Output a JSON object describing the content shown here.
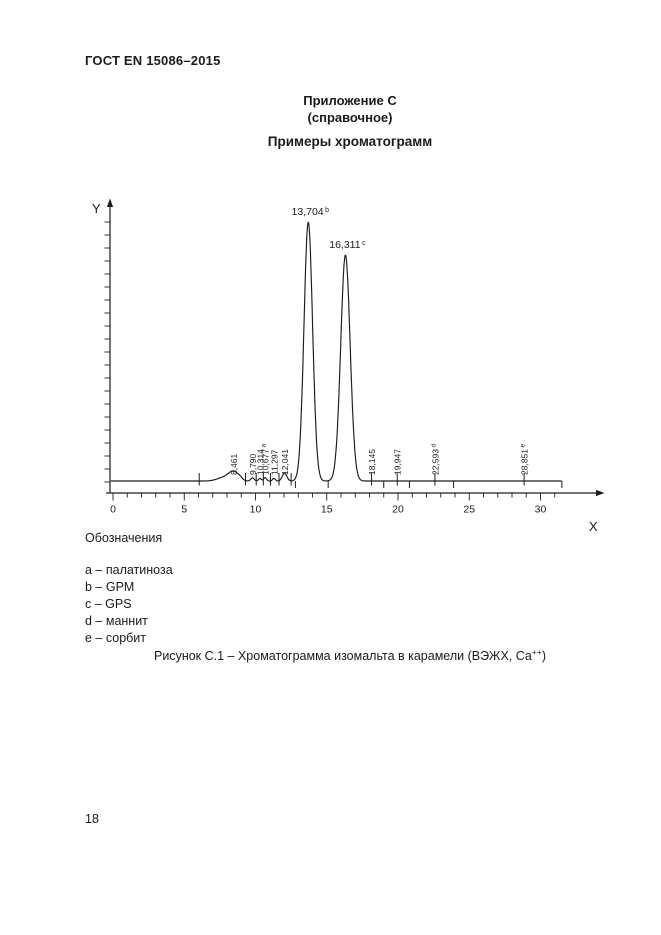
{
  "page": {
    "header": "ГОСТ EN 15086–2015",
    "appendix_title": "Приложение С",
    "appendix_subtitle": "(справочное)",
    "section_title": "Примеры хроматограмм",
    "page_number": "18"
  },
  "legend": {
    "title": "Обозначения",
    "items": [
      "a – палатиноза",
      "b – GPM",
      "c – GPS",
      "d – маннит",
      "e – сорбит"
    ]
  },
  "caption": {
    "prefix": "Рисунок С.1 – Хроматограмма изомальта в карамели (ВЭЖХ, Са",
    "sup": "++",
    "suffix": ")"
  },
  "chart_data": {
    "type": "line",
    "kind": "chromatogram",
    "title": "",
    "xlabel": "X",
    "ylabel": "Y",
    "xlim": [
      0,
      31.6
    ],
    "x_major_ticks": [
      0,
      5,
      10,
      15,
      20,
      25,
      30
    ],
    "x_minor_tick_step": 1,
    "y_axis": "unlabeled uniform tick marks",
    "ink_color": "#1c1c1c",
    "peaks": [
      {
        "rt": 8.461,
        "label": "8,461",
        "sup": "",
        "rel_height": 0.03,
        "sigma": 0.3,
        "label_style": "rotated"
      },
      {
        "rt": 9.79,
        "label": "9,790",
        "sup": "",
        "rel_height": 0.012,
        "sigma": 0.12,
        "label_style": "rotated"
      },
      {
        "rt": 10.314,
        "label": "10,314",
        "sup": "",
        "rel_height": 0.01,
        "sigma": 0.1,
        "label_style": "rotated"
      },
      {
        "rt": 10.677,
        "label": "10,677",
        "sup": "a",
        "rel_height": 0.013,
        "sigma": 0.1,
        "label_style": "rotated"
      },
      {
        "rt": 11.297,
        "label": "11,297",
        "sup": "",
        "rel_height": 0.01,
        "sigma": 0.1,
        "label_style": "rotated"
      },
      {
        "rt": 12.041,
        "label": "12,041",
        "sup": "",
        "rel_height": 0.03,
        "sigma": 0.16,
        "label_style": "rotated"
      },
      {
        "rt": 13.704,
        "label": "13,704",
        "sup": "b",
        "rel_height": 1.0,
        "sigma": 0.3,
        "label_style": "horizontal"
      },
      {
        "rt": 16.311,
        "label": "16,311",
        "sup": "c",
        "rel_height": 0.873,
        "sigma": 0.33,
        "label_style": "horizontal"
      },
      {
        "rt": 18.145,
        "label": "18,145",
        "sup": "",
        "rel_height": 0.0,
        "sigma": 0.1,
        "label_style": "rotated"
      },
      {
        "rt": 19.947,
        "label": "19,947",
        "sup": "",
        "rel_height": 0.0,
        "sigma": 0.1,
        "label_style": "rotated"
      },
      {
        "rt": 22.593,
        "label": "22,593",
        "sup": "d",
        "rel_height": 0.0,
        "sigma": 0.1,
        "label_style": "rotated"
      },
      {
        "rt": 28.851,
        "label": "28,851",
        "sup": "e",
        "rel_height": 0.0,
        "sigma": 0.1,
        "label_style": "rotated"
      }
    ],
    "baseline_humps": [
      {
        "rt": 7.9,
        "rel_height": 0.016,
        "sigma": 0.5
      },
      {
        "rt": 8.9,
        "rel_height": 0.01,
        "sigma": 0.18
      }
    ],
    "baseline_cross_ticks": [
      6.05,
      9.3,
      10.05,
      10.55,
      11.05,
      11.65,
      12.5,
      18.145,
      19.947,
      22.593,
      28.851
    ],
    "baseline_down_ticks": [
      12.8,
      15.1,
      19.0,
      20.8,
      23.9,
      31.5
    ]
  }
}
